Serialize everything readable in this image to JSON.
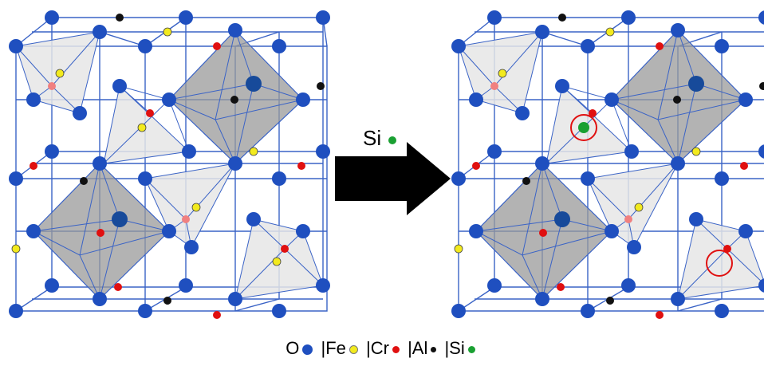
{
  "colors": {
    "O": "#1f4fbf",
    "Fe": "#f2ea1e",
    "Cr": "#e01010",
    "Al": "#111111",
    "Si": "#1aa032",
    "lattice": "#3a63c6",
    "octahedron": "#999999",
    "tetrahedron": "#e6e6e6",
    "highlight": "#e01010"
  },
  "arrow": {
    "label": "Si"
  },
  "legend": {
    "items": [
      {
        "symbol": "O",
        "color_key": "O",
        "separator": ""
      },
      {
        "symbol": "Fe",
        "color_key": "Fe",
        "separator": "|"
      },
      {
        "symbol": "Cr",
        "color_key": "Cr",
        "separator": "|"
      },
      {
        "symbol": "Al",
        "color_key": "Al",
        "separator": "|"
      },
      {
        "symbol": "Si",
        "color_key": "Si",
        "separator": "|"
      }
    ]
  }
}
